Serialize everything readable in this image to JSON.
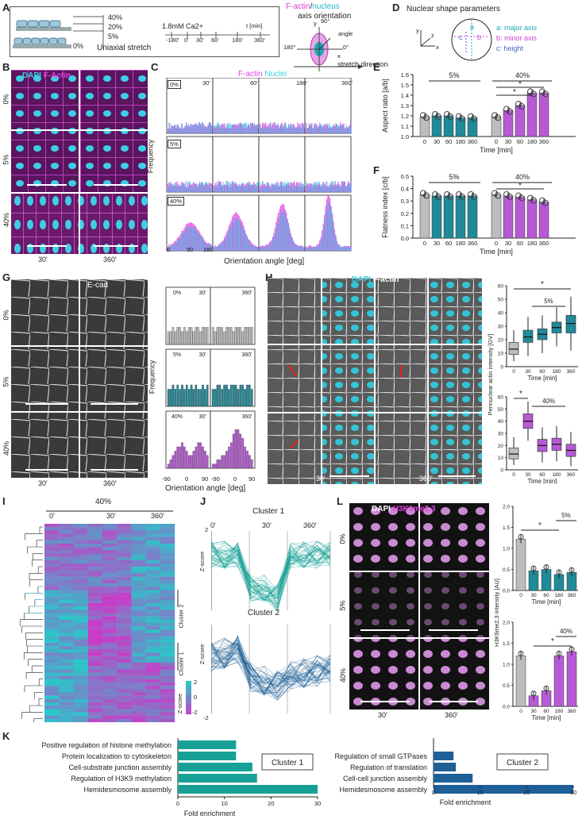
{
  "colors": {
    "teal": "#1f8a98",
    "purple": "#b85ad6",
    "grey": "#bdbdbd",
    "magenta": "#e040e0",
    "cyan": "#38d0e0",
    "cluster1": "#17a196",
    "cluster2": "#1d5f96"
  },
  "panelA": {
    "label": "A",
    "stretch_levels": [
      "40%",
      "20%",
      "5%",
      "0%"
    ],
    "stretch_title": "Uniaxial stretch",
    "calcium": "1.8mM Ca2+",
    "timeline_unit": "t [min]",
    "timeline_ticks": [
      "-180'",
      "0'",
      "30'",
      "60'",
      "180'",
      "360'"
    ],
    "axis_title_factin": "F-actin",
    "axis_title_sep": "/",
    "axis_title_nucleus": "nucleus",
    "axis_title_2": "axis orientation",
    "angle_labels": [
      "y",
      "90°",
      "angle",
      "180°",
      "0°",
      "x",
      "stretch direction"
    ]
  },
  "panelB": {
    "label": "B",
    "stain_dapi": "DAPI",
    "stain_factin": "F-Actin",
    "rows": [
      "0%",
      "5%",
      "40%"
    ],
    "cols": [
      "30'",
      "360'"
    ]
  },
  "panelC": {
    "label": "C",
    "legend_factin": "F-actin",
    "legend_nuclei": "Nuclei",
    "ylabel": "Frequency",
    "xlabel": "Orientation angle [deg]",
    "row_labels": [
      "0%",
      "5%",
      "40%"
    ],
    "time_labels": [
      "30'",
      "60'",
      "180'",
      "360'"
    ],
    "xticks": [
      "0",
      "90",
      "180"
    ]
  },
  "panelD": {
    "label": "D",
    "title": "Nuclear shape parameters",
    "axes": [
      "y",
      "z",
      "x"
    ],
    "letters": [
      "a",
      "b",
      "c"
    ],
    "legend": [
      "a: major axis",
      "b: minor axis",
      "c: height"
    ]
  },
  "panelG": {
    "label": "G",
    "stain": "E-cad",
    "rows": [
      "0%",
      "5%",
      "40%"
    ],
    "cols": [
      "30'",
      "360'"
    ],
    "hist_ylabel": "Frequency",
    "hist_xlabel": "Orientation angle [deg]",
    "hist_xticks": [
      "-90",
      "0",
      "90",
      "-90",
      "0",
      "90"
    ]
  },
  "panelH": {
    "label": "H",
    "stain_dapi": "DAPI",
    "stain_factin": "F-actin",
    "rows": [
      "0%",
      "5%",
      "40%"
    ],
    "cols": [
      "30'",
      "360'"
    ]
  },
  "panelI": {
    "label": "I",
    "title": "40%",
    "cols": [
      "0'",
      "30'",
      "360'"
    ],
    "cluster_labels": [
      "Cluster 2",
      "Cluster 1"
    ],
    "colorbar_title": "Z-score",
    "colorbar_ticks": [
      "2",
      "0",
      "-2"
    ]
  },
  "panelJ": {
    "label": "J",
    "cluster1_title": "Cluster 1",
    "cluster2_title": "Cluster 2",
    "cols": [
      "0'",
      "30'",
      "360'"
    ],
    "ylabel": "Z-score",
    "yticks": [
      "2",
      "-2"
    ]
  },
  "panelL": {
    "label": "L",
    "stain_dapi": "DAPI",
    "stain_mark": "H3K9me2,3",
    "rows": [
      "0%",
      "5%",
      "40%"
    ],
    "cols": [
      "30'",
      "360'"
    ]
  },
  "panelK": {
    "label": "K"
  },
  "chart_data": [
    {
      "id": "E",
      "type": "bar",
      "ylabel": "Aspect ratio [a/b]",
      "xlabel": "Time [min]",
      "categories": [
        "0",
        "30",
        "60",
        "180",
        "360",
        "0",
        "30",
        "60",
        "180",
        "360"
      ],
      "group_labels": [
        "5%",
        "40%"
      ],
      "values": [
        1.19,
        1.2,
        1.2,
        1.18,
        1.18,
        1.19,
        1.25,
        1.3,
        1.42,
        1.42
      ],
      "ylim": [
        1.0,
        1.6
      ],
      "yticks": [
        1.0,
        1.1,
        1.2,
        1.3,
        1.4,
        1.5,
        1.6
      ],
      "significance": [
        "*",
        "*"
      ]
    },
    {
      "id": "F",
      "type": "bar",
      "ylabel": "Flatness index [c/b]",
      "xlabel": "Time [min]",
      "categories": [
        "0",
        "30",
        "60",
        "180",
        "360",
        "0",
        "30",
        "60",
        "180",
        "360"
      ],
      "group_labels": [
        "5%",
        "40%"
      ],
      "values": [
        0.35,
        0.34,
        0.34,
        0.34,
        0.34,
        0.35,
        0.34,
        0.33,
        0.31,
        0.29
      ],
      "ylim": [
        0.0,
        0.5
      ],
      "yticks": [
        0.0,
        0.1,
        0.2,
        0.3,
        0.4,
        0.5
      ],
      "significance": [
        "*"
      ]
    },
    {
      "id": "G-hist",
      "type": "bar",
      "ylabel": "Frequency",
      "xlabel": "Orientation angle [deg]",
      "rows": [
        "0%",
        "5%",
        "40%"
      ],
      "times": [
        "30'",
        "360'"
      ],
      "series": [
        {
          "name": "0% 30'",
          "values": [
            3,
            3,
            4,
            3,
            4,
            4,
            3,
            4,
            3,
            4,
            4,
            3,
            4,
            4,
            3,
            4,
            4,
            4
          ]
        },
        {
          "name": "0% 360'",
          "values": [
            4,
            3,
            4,
            4,
            4,
            3,
            4,
            4,
            4,
            3,
            4,
            4,
            4,
            3,
            4,
            4,
            4,
            4
          ]
        },
        {
          "name": "5% 30'",
          "values": [
            4,
            4,
            5,
            4,
            5,
            4,
            5,
            4,
            5,
            4,
            5,
            4,
            5,
            4,
            4,
            5,
            4,
            5
          ]
        },
        {
          "name": "5% 360'",
          "values": [
            4,
            4,
            5,
            5,
            4,
            5,
            5,
            4,
            5,
            5,
            5,
            4,
            5,
            5,
            4,
            5,
            5,
            4
          ]
        },
        {
          "name": "40% 30'",
          "values": [
            1,
            2,
            3,
            4,
            5,
            5,
            6,
            5,
            4,
            3,
            3,
            4,
            5,
            6,
            6,
            5,
            4,
            3
          ]
        },
        {
          "name": "40% 360'",
          "values": [
            1,
            1,
            2,
            2,
            3,
            3,
            4,
            5,
            6,
            8,
            9,
            9,
            8,
            7,
            5,
            4,
            3,
            2
          ]
        }
      ]
    },
    {
      "id": "H-top",
      "type": "box",
      "ylabel": "Perinuclear actin intensity [GV]",
      "xlabel": "Time [min]",
      "categories": [
        "0",
        "30",
        "60",
        "180",
        "360"
      ],
      "group_label": "5%",
      "ylim": [
        0,
        60
      ],
      "yticks": [
        0,
        10,
        20,
        30,
        40,
        50,
        60
      ],
      "series": [
        {
          "name": "0",
          "q1": 9,
          "median": 13,
          "q3": 18,
          "min": 4,
          "max": 27
        },
        {
          "name": "30",
          "q1": 18,
          "median": 22,
          "q3": 27,
          "min": 8,
          "max": 37
        },
        {
          "name": "60",
          "q1": 20,
          "median": 24,
          "q3": 28,
          "min": 10,
          "max": 38
        },
        {
          "name": "180",
          "q1": 25,
          "median": 29,
          "q3": 33,
          "min": 15,
          "max": 44
        },
        {
          "name": "360",
          "q1": 25,
          "median": 32,
          "q3": 38,
          "min": 12,
          "max": 52
        }
      ],
      "significance": [
        "*"
      ]
    },
    {
      "id": "H-bottom",
      "type": "box",
      "xlabel": "Time [min]",
      "categories": [
        "0",
        "30",
        "60",
        "180",
        "360"
      ],
      "group_label": "40%",
      "ylim": [
        0,
        60
      ],
      "yticks": [
        0,
        10,
        20,
        30,
        40,
        50,
        60
      ],
      "series": [
        {
          "name": "0",
          "q1": 9,
          "median": 13,
          "q3": 18,
          "min": 4,
          "max": 27
        },
        {
          "name": "30",
          "q1": 34,
          "median": 40,
          "q3": 46,
          "min": 24,
          "max": 56
        },
        {
          "name": "60",
          "q1": 15,
          "median": 20,
          "q3": 25,
          "min": 6,
          "max": 35
        },
        {
          "name": "180",
          "q1": 16,
          "median": 21,
          "q3": 26,
          "min": 7,
          "max": 36
        },
        {
          "name": "360",
          "q1": 11,
          "median": 16,
          "q3": 21,
          "min": 3,
          "max": 31
        }
      ],
      "significance": [
        "*"
      ]
    },
    {
      "id": "L-top",
      "type": "bar",
      "ylabel": "H3K9me2,3 intensity [AU]",
      "xlabel": "Time [min]",
      "categories": [
        "0",
        "30",
        "60",
        "180",
        "360"
      ],
      "group_label": "5%",
      "values": [
        1.22,
        0.47,
        0.5,
        0.38,
        0.43
      ],
      "ylim": [
        0,
        2.0
      ],
      "yticks": [
        0,
        0.5,
        1.0,
        1.5,
        2.0
      ],
      "significance": [
        "*"
      ]
    },
    {
      "id": "L-bottom",
      "type": "bar",
      "xlabel": "Time [min]",
      "categories": [
        "0",
        "30",
        "60",
        "180",
        "360"
      ],
      "group_label": "40%",
      "values": [
        1.2,
        0.25,
        0.37,
        1.2,
        1.3
      ],
      "ylim": [
        0,
        2.0
      ],
      "yticks": [
        0,
        0.5,
        1.0,
        1.5,
        2.0
      ],
      "significance": [
        "*"
      ]
    },
    {
      "id": "K-cluster1",
      "type": "bar",
      "orientation": "horizontal",
      "title": "Cluster 1",
      "xlabel": "Fold enrichment",
      "categories": [
        "Positive regulation of histone methylation",
        "Protein localization to cytoskeleton",
        "Cell-substrate junction assembly",
        "Regulation of H3K9 methylation",
        "Hemidesmosome assembly"
      ],
      "values": [
        12.5,
        12.5,
        16,
        17,
        30
      ],
      "xlim": [
        0,
        30
      ],
      "xticks": [
        0,
        10,
        20,
        30
      ]
    },
    {
      "id": "K-cluster2",
      "type": "bar",
      "orientation": "horizontal",
      "title": "Cluster 2",
      "xlabel": "Fold enrichment",
      "categories": [
        "Regulation of small GTPases",
        "Regulation of translation",
        "Cell-cell junction assembly",
        "Hemidesmosome assembly"
      ],
      "values": [
        4.3,
        4.8,
        8.4,
        30
      ],
      "xlim": [
        0,
        30
      ],
      "xticks": [
        0,
        10,
        20,
        30
      ]
    }
  ]
}
